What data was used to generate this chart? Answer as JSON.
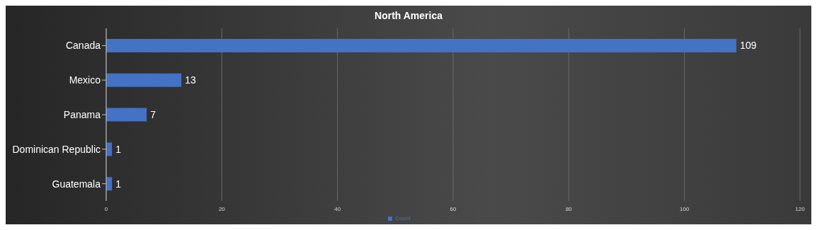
{
  "chart_data": {
    "type": "bar",
    "orientation": "horizontal",
    "title": "North America",
    "categories": [
      "Canada",
      "Mexico",
      "Panama",
      "Dominican Republic",
      "Guatemala"
    ],
    "series": [
      {
        "name": "Count",
        "color": "#4472c4",
        "values": [
          109,
          13,
          7,
          1,
          1
        ]
      }
    ],
    "xlim": [
      0,
      120
    ],
    "xticks": [
      0,
      20,
      40,
      60,
      80,
      100,
      120
    ],
    "grid": "x",
    "legend": "bottom",
    "data_labels": true
  }
}
